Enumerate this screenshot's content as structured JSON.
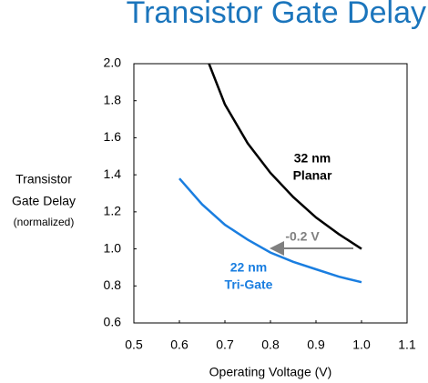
{
  "chart_data": {
    "type": "line",
    "title": "Transistor Gate Delay",
    "title_color": "#1b75bc",
    "ylabel_lines": [
      "Transistor",
      "Gate Delay",
      "(normalized)"
    ],
    "xlabel": "Operating Voltage (V)",
    "xlim": [
      0.5,
      1.1
    ],
    "xticks": [
      0.5,
      0.6,
      0.7,
      0.8,
      0.9,
      {
        "value": 1,
        "label": "1.0"
      },
      1.1
    ],
    "ylim": [
      0.6,
      2.0
    ],
    "yticks": [
      0.6,
      0.8,
      {
        "value": 1,
        "label": "1.0"
      },
      1.2,
      1.4,
      1.6,
      1.8,
      {
        "value": 2,
        "label": "2.0"
      }
    ],
    "grid": false,
    "series": [
      {
        "name_lines": [
          "32 nm",
          "Planar"
        ],
        "color": "#000000",
        "x": [
          0.665,
          0.7,
          0.75,
          0.8,
          0.85,
          0.9,
          0.95,
          1.0
        ],
        "values": [
          2.0,
          1.78,
          1.57,
          1.41,
          1.28,
          1.17,
          1.08,
          1.0
        ]
      },
      {
        "name_lines": [
          "22 nm",
          "Tri-Gate"
        ],
        "color": "#1a7ee0",
        "x": [
          0.6,
          0.65,
          0.7,
          0.75,
          0.8,
          0.85,
          0.9,
          0.95,
          1.0
        ],
        "values": [
          1.38,
          1.24,
          1.13,
          1.05,
          0.98,
          0.93,
          0.89,
          0.85,
          0.82
        ]
      }
    ],
    "annotation": {
      "text": "-0.2 V",
      "color": "#808080"
    }
  }
}
